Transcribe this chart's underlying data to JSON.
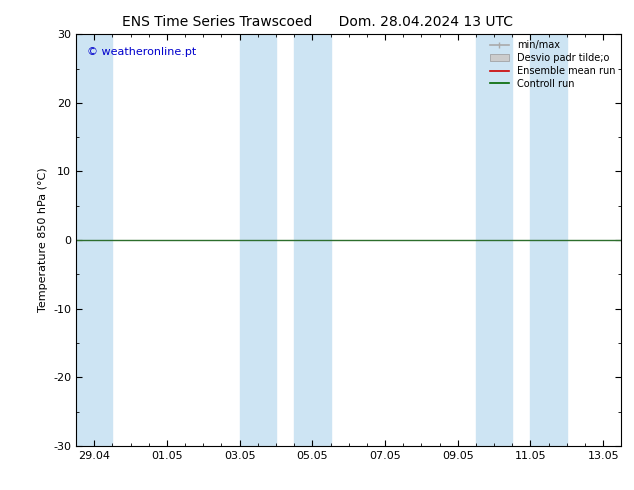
{
  "title_left": "ENS Time Series Trawscoed",
  "title_right": "Dom. 28.04.2024 13 UTC",
  "ylabel": "Temperature 850 hPa (°C)",
  "ylim": [
    -30,
    30
  ],
  "yticks": [
    -30,
    -20,
    -10,
    0,
    10,
    20,
    30
  ],
  "xtick_labels": [
    "29.04",
    "01.05",
    "03.05",
    "05.05",
    "07.05",
    "09.05",
    "11.05",
    "13.05"
  ],
  "xtick_positions": [
    0,
    2,
    4,
    6,
    8,
    10,
    12,
    14
  ],
  "xlim": [
    -0.5,
    14.5
  ],
  "band_ranges": [
    [
      -0.5,
      0.5
    ],
    [
      4.0,
      5.0
    ],
    [
      5.5,
      6.5
    ],
    [
      10.5,
      11.5
    ],
    [
      12.0,
      13.0
    ]
  ],
  "background_color": "#ffffff",
  "band_color": "#cde4f3",
  "zero_line_color": "#2d6e2d",
  "copyright_text": "© weatheronline.pt",
  "copyright_color": "#0000cc",
  "legend_items": [
    {
      "label": "min/max",
      "color": "#aaaaaa",
      "lw": 1.2
    },
    {
      "label": "Desvio padr tilde;o",
      "color": "#cccccc",
      "lw": 8
    },
    {
      "label": "Ensemble mean run",
      "color": "#cc0000",
      "lw": 1.2
    },
    {
      "label": "Controll run",
      "color": "#006600",
      "lw": 1.2
    }
  ],
  "title_fontsize": 10,
  "tick_fontsize": 8,
  "ylabel_fontsize": 8,
  "copyright_fontsize": 8,
  "legend_fontsize": 7
}
